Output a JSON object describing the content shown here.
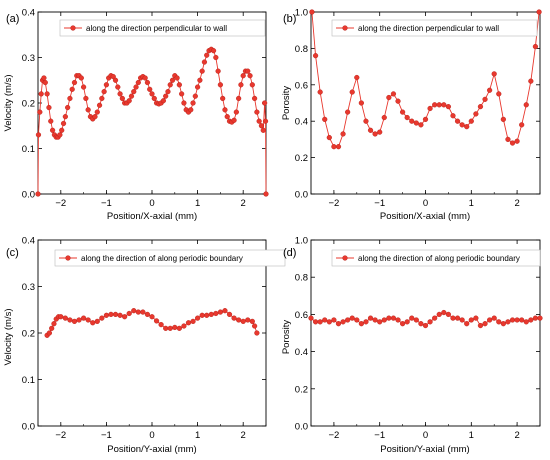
{
  "chart_data": [
    {
      "type": "line",
      "panel_label": "(a)",
      "xlabel": "Position/X-axial (mm)",
      "ylabel": "Velocity (m/s)",
      "xlim": [
        -2.5,
        2.5
      ],
      "ylim": [
        0,
        0.4
      ],
      "xticks": [
        -2,
        -1,
        0,
        1,
        2
      ],
      "yticks": [
        0.0,
        0.1,
        0.2,
        0.3,
        0.4
      ],
      "ytick_labels": [
        "0.0",
        "0.1",
        "0.2",
        "0.3",
        "0.4"
      ],
      "legend_position": "top-right",
      "color": "#e8382e",
      "series": [
        {
          "name": "along the direction perpendicular to wall",
          "x": [
            -2.5,
            -2.49,
            -2.46,
            -2.43,
            -2.4,
            -2.37,
            -2.34,
            -2.3,
            -2.26,
            -2.22,
            -2.18,
            -2.14,
            -2.1,
            -2.06,
            -2.02,
            -1.98,
            -1.94,
            -1.9,
            -1.85,
            -1.8,
            -1.75,
            -1.7,
            -1.65,
            -1.6,
            -1.55,
            -1.5,
            -1.45,
            -1.4,
            -1.35,
            -1.3,
            -1.25,
            -1.2,
            -1.15,
            -1.1,
            -1.05,
            -1.0,
            -0.95,
            -0.9,
            -0.85,
            -0.8,
            -0.75,
            -0.7,
            -0.65,
            -0.6,
            -0.55,
            -0.5,
            -0.45,
            -0.4,
            -0.35,
            -0.3,
            -0.25,
            -0.2,
            -0.15,
            -0.1,
            -0.05,
            0.0,
            0.05,
            0.1,
            0.15,
            0.2,
            0.25,
            0.3,
            0.35,
            0.4,
            0.45,
            0.5,
            0.55,
            0.6,
            0.65,
            0.7,
            0.75,
            0.8,
            0.85,
            0.9,
            0.95,
            1.0,
            1.05,
            1.1,
            1.15,
            1.2,
            1.25,
            1.3,
            1.35,
            1.4,
            1.45,
            1.5,
            1.55,
            1.6,
            1.65,
            1.7,
            1.75,
            1.8,
            1.85,
            1.9,
            1.95,
            2.0,
            2.05,
            2.1,
            2.15,
            2.2,
            2.25,
            2.3,
            2.35,
            2.4,
            2.44,
            2.47,
            2.49,
            2.5
          ],
          "y": [
            0.0,
            0.13,
            0.18,
            0.22,
            0.25,
            0.255,
            0.245,
            0.22,
            0.19,
            0.16,
            0.14,
            0.13,
            0.125,
            0.125,
            0.13,
            0.14,
            0.155,
            0.17,
            0.19,
            0.21,
            0.23,
            0.245,
            0.26,
            0.26,
            0.255,
            0.235,
            0.21,
            0.185,
            0.17,
            0.165,
            0.17,
            0.18,
            0.195,
            0.21,
            0.225,
            0.24,
            0.255,
            0.26,
            0.258,
            0.25,
            0.235,
            0.22,
            0.21,
            0.2,
            0.2,
            0.205,
            0.215,
            0.225,
            0.235,
            0.245,
            0.255,
            0.258,
            0.255,
            0.245,
            0.23,
            0.22,
            0.21,
            0.2,
            0.198,
            0.2,
            0.205,
            0.215,
            0.225,
            0.24,
            0.25,
            0.26,
            0.255,
            0.24,
            0.22,
            0.2,
            0.185,
            0.18,
            0.185,
            0.2,
            0.215,
            0.235,
            0.25,
            0.27,
            0.29,
            0.305,
            0.315,
            0.318,
            0.315,
            0.3,
            0.27,
            0.24,
            0.21,
            0.185,
            0.17,
            0.16,
            0.158,
            0.162,
            0.18,
            0.21,
            0.24,
            0.26,
            0.27,
            0.27,
            0.26,
            0.24,
            0.21,
            0.18,
            0.16,
            0.15,
            0.14,
            0.2,
            0.16,
            0.0
          ]
        }
      ]
    },
    {
      "type": "line",
      "panel_label": "(b)",
      "xlabel": "Position/X-axial (mm)",
      "ylabel": "Porosity",
      "xlim": [
        -2.5,
        2.5
      ],
      "ylim": [
        0,
        1.0
      ],
      "xticks": [
        -2,
        -1,
        0,
        1,
        2
      ],
      "yticks": [
        0.0,
        0.2,
        0.4,
        0.6,
        0.8,
        1.0
      ],
      "ytick_labels": [
        "0.0",
        "0.2",
        "0.4",
        "0.6",
        "0.8",
        "1.0"
      ],
      "legend_position": "top-right",
      "color": "#e8382e",
      "series": [
        {
          "name": "along the direction perpendicular to wall",
          "x": [
            -2.48,
            -2.4,
            -2.3,
            -2.2,
            -2.1,
            -2.0,
            -1.9,
            -1.8,
            -1.7,
            -1.6,
            -1.5,
            -1.4,
            -1.3,
            -1.2,
            -1.1,
            -1.0,
            -0.9,
            -0.8,
            -0.7,
            -0.6,
            -0.5,
            -0.4,
            -0.3,
            -0.2,
            -0.1,
            0.0,
            0.1,
            0.2,
            0.3,
            0.4,
            0.5,
            0.6,
            0.7,
            0.8,
            0.9,
            1.0,
            1.1,
            1.2,
            1.3,
            1.4,
            1.5,
            1.6,
            1.7,
            1.8,
            1.9,
            2.0,
            2.1,
            2.2,
            2.3,
            2.4,
            2.48
          ],
          "y": [
            1.0,
            0.76,
            0.56,
            0.41,
            0.31,
            0.26,
            0.26,
            0.33,
            0.45,
            0.56,
            0.64,
            0.5,
            0.4,
            0.35,
            0.33,
            0.34,
            0.42,
            0.53,
            0.55,
            0.51,
            0.45,
            0.42,
            0.4,
            0.39,
            0.38,
            0.41,
            0.47,
            0.49,
            0.49,
            0.49,
            0.48,
            0.43,
            0.4,
            0.38,
            0.37,
            0.4,
            0.44,
            0.48,
            0.52,
            0.57,
            0.66,
            0.55,
            0.41,
            0.3,
            0.28,
            0.29,
            0.38,
            0.49,
            0.62,
            0.81,
            1.0
          ]
        }
      ]
    },
    {
      "type": "line",
      "panel_label": "(c)",
      "xlabel": "Position/Y-axial (mm)",
      "ylabel": "Velocity (m/s)",
      "xlim": [
        -2.5,
        2.5
      ],
      "ylim": [
        0,
        0.4
      ],
      "xticks": [
        -2,
        -1,
        0,
        1,
        2
      ],
      "yticks": [
        0.0,
        0.1,
        0.2,
        0.3,
        0.4
      ],
      "ytick_labels": [
        "0.0",
        "0.1",
        "0.2",
        "0.3",
        "0.4"
      ],
      "legend_position": "top-right",
      "color": "#e8382e",
      "series": [
        {
          "name": "along the direction of along periodic boundary",
          "x": [
            -2.3,
            -2.25,
            -2.2,
            -2.15,
            -2.1,
            -2.05,
            -2.0,
            -1.9,
            -1.8,
            -1.7,
            -1.6,
            -1.5,
            -1.4,
            -1.3,
            -1.2,
            -1.1,
            -1.0,
            -0.9,
            -0.8,
            -0.7,
            -0.6,
            -0.5,
            -0.4,
            -0.3,
            -0.2,
            -0.1,
            0.0,
            0.1,
            0.2,
            0.3,
            0.4,
            0.5,
            0.6,
            0.7,
            0.8,
            0.9,
            1.0,
            1.1,
            1.2,
            1.3,
            1.4,
            1.5,
            1.6,
            1.7,
            1.8,
            1.9,
            2.0,
            2.1,
            2.2,
            2.25,
            2.3
          ],
          "y": [
            0.195,
            0.2,
            0.21,
            0.22,
            0.23,
            0.235,
            0.235,
            0.232,
            0.228,
            0.225,
            0.228,
            0.232,
            0.228,
            0.222,
            0.225,
            0.232,
            0.238,
            0.24,
            0.24,
            0.238,
            0.235,
            0.242,
            0.248,
            0.245,
            0.245,
            0.24,
            0.235,
            0.226,
            0.218,
            0.21,
            0.21,
            0.212,
            0.21,
            0.215,
            0.222,
            0.225,
            0.232,
            0.238,
            0.238,
            0.24,
            0.242,
            0.245,
            0.248,
            0.24,
            0.232,
            0.228,
            0.225,
            0.228,
            0.225,
            0.215,
            0.2
          ]
        }
      ]
    },
    {
      "type": "line",
      "panel_label": "(d)",
      "xlabel": "Position/Y-axial (mm)",
      "ylabel": "Porosity",
      "xlim": [
        -2.5,
        2.5
      ],
      "ylim": [
        0,
        1.0
      ],
      "xticks": [
        -2,
        -1,
        0,
        1,
        2
      ],
      "yticks": [
        0.0,
        0.2,
        0.4,
        0.6,
        0.8,
        1.0
      ],
      "ytick_labels": [
        "0.0",
        "0.2",
        "0.4",
        "0.6",
        "0.8",
        "1.0"
      ],
      "legend_position": "top-right",
      "color": "#e8382e",
      "series": [
        {
          "name": "along the direction of along periodic boundary",
          "x": [
            -2.5,
            -2.4,
            -2.3,
            -2.2,
            -2.1,
            -2.0,
            -1.9,
            -1.8,
            -1.7,
            -1.6,
            -1.5,
            -1.4,
            -1.3,
            -1.2,
            -1.1,
            -1.0,
            -0.9,
            -0.8,
            -0.7,
            -0.6,
            -0.5,
            -0.4,
            -0.3,
            -0.2,
            -0.1,
            0.0,
            0.1,
            0.2,
            0.3,
            0.4,
            0.5,
            0.6,
            0.7,
            0.8,
            0.9,
            1.0,
            1.1,
            1.2,
            1.3,
            1.4,
            1.5,
            1.6,
            1.7,
            1.8,
            1.9,
            2.0,
            2.1,
            2.2,
            2.3,
            2.4,
            2.5
          ],
          "y": [
            0.58,
            0.56,
            0.56,
            0.57,
            0.56,
            0.57,
            0.55,
            0.56,
            0.57,
            0.58,
            0.57,
            0.55,
            0.56,
            0.58,
            0.57,
            0.56,
            0.57,
            0.58,
            0.58,
            0.57,
            0.55,
            0.56,
            0.58,
            0.57,
            0.55,
            0.54,
            0.56,
            0.58,
            0.6,
            0.61,
            0.6,
            0.58,
            0.58,
            0.57,
            0.55,
            0.57,
            0.58,
            0.54,
            0.55,
            0.57,
            0.58,
            0.56,
            0.55,
            0.56,
            0.57,
            0.57,
            0.57,
            0.56,
            0.57,
            0.58,
            0.58
          ]
        }
      ]
    }
  ]
}
